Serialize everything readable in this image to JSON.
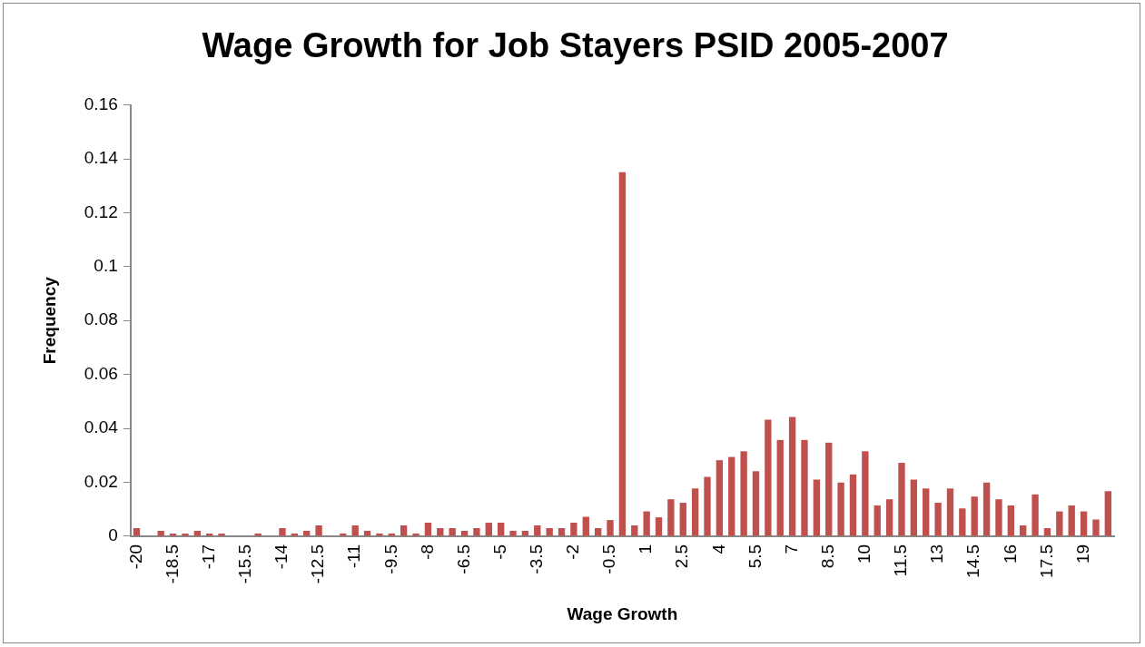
{
  "chart_data": {
    "type": "bar",
    "title": "Wage Growth for Job Stayers PSID 2005-2007",
    "xlabel": "Wage Growth",
    "ylabel": "Frequency",
    "categories": [
      "-20",
      null,
      null,
      "-18.5",
      null,
      null,
      "-17",
      null,
      null,
      "-15.5",
      null,
      null,
      "-14",
      null,
      null,
      "-12.5",
      null,
      null,
      "-11",
      null,
      null,
      "-9.5",
      null,
      null,
      "-8",
      null,
      null,
      "-6.5",
      null,
      null,
      "-5",
      null,
      null,
      "-3.5",
      null,
      null,
      "-2",
      null,
      null,
      "-0.5",
      null,
      null,
      "1",
      null,
      null,
      "2.5",
      null,
      null,
      "4",
      null,
      null,
      "5.5",
      null,
      null,
      "7",
      null,
      null,
      "8.5",
      null,
      null,
      "10",
      null,
      null,
      "11.5",
      null,
      null,
      "13",
      null,
      null,
      "14.5",
      null,
      null,
      "16",
      null,
      null,
      "17.5",
      null,
      null,
      "19",
      null,
      null
    ],
    "values": [
      0.003,
      0,
      0.002,
      0.001,
      0.001,
      0.002,
      0.001,
      0.001,
      0,
      0,
      0.001,
      0,
      0.003,
      0.001,
      0.002,
      0.004,
      0,
      0.001,
      0.004,
      0.002,
      0.001,
      0.001,
      0.004,
      0.001,
      0.005,
      0.003,
      0.003,
      0.002,
      0.003,
      0.005,
      0.005,
      0.002,
      0.002,
      0.004,
      0.003,
      0.003,
      0.005,
      0.0072,
      0.003,
      0.006,
      0.135,
      0.004,
      0.0092,
      0.007,
      0.0137,
      0.0124,
      0.0177,
      0.022,
      0.0282,
      0.0294,
      0.0315,
      0.0241,
      0.0432,
      0.0357,
      0.0442,
      0.0357,
      0.021,
      0.0347,
      0.0199,
      0.0229,
      0.0315,
      0.0114,
      0.0137,
      0.0272,
      0.021,
      0.0177,
      0.0124,
      0.0177,
      0.0103,
      0.0147,
      0.0199,
      0.0137,
      0.0114,
      0.004,
      0.0155,
      0.003,
      0.0092,
      0.0114,
      0.0092,
      0.0062,
      0.0167
    ],
    "color": "#c0504d",
    "ylim": [
      0,
      0.16
    ],
    "yticks": [
      0,
      0.02,
      0.04,
      0.06,
      0.08,
      0.1,
      0.12,
      0.14,
      0.16
    ],
    "grid": false,
    "legend": false
  }
}
